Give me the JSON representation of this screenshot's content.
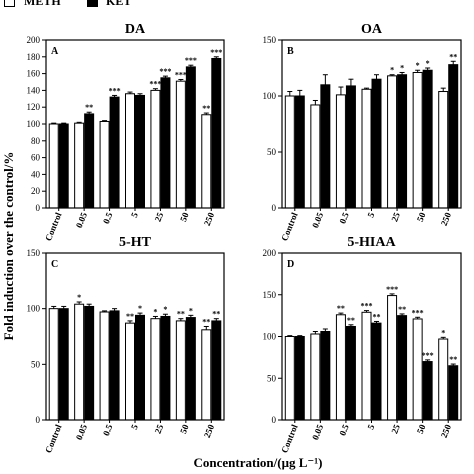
{
  "figure": {
    "ylabel": "Fold induction over the control/%",
    "xlabel": "Concentration/(μg L⁻¹)"
  },
  "legend": [
    {
      "label": "METH",
      "color": "#ffffff"
    },
    {
      "label": "KET",
      "color": "#000000"
    }
  ],
  "chart_data": [
    {
      "type": "bar",
      "letter": "A",
      "title": "DA",
      "categories": [
        "Control",
        "0.05",
        "0.5",
        "5",
        "25",
        "50",
        "250"
      ],
      "ylim": [
        0,
        200
      ],
      "yticks": [
        0,
        20,
        40,
        60,
        80,
        100,
        120,
        140,
        160,
        180,
        200
      ],
      "series": [
        {
          "name": "METH",
          "values": [
            100,
            101,
            103,
            136,
            140,
            151,
            111
          ],
          "errors": [
            1,
            1,
            1,
            2,
            2,
            2,
            2
          ],
          "stars": [
            "",
            "",
            "",
            "",
            "***",
            "***",
            "**"
          ]
        },
        {
          "name": "KET",
          "values": [
            100,
            112,
            132,
            134,
            155,
            168,
            178
          ],
          "errors": [
            1,
            2,
            2,
            2,
            2,
            2,
            2
          ],
          "stars": [
            "",
            "**",
            "***",
            "",
            "***",
            "***",
            "***"
          ]
        }
      ]
    },
    {
      "type": "bar",
      "letter": "B",
      "title": "OA",
      "categories": [
        "Control",
        "0.05",
        "0.5",
        "5",
        "25",
        "50",
        "250"
      ],
      "ylim": [
        0,
        150
      ],
      "yticks": [
        0,
        50,
        100,
        150
      ],
      "series": [
        {
          "name": "METH",
          "values": [
            100,
            92,
            101,
            106,
            118,
            121,
            104
          ],
          "errors": [
            4,
            4,
            7,
            1,
            1,
            2,
            3
          ],
          "stars": [
            "",
            "",
            "",
            "",
            "*",
            "*",
            ""
          ]
        },
        {
          "name": "KET",
          "values": [
            100,
            110,
            109,
            115,
            119,
            123,
            128
          ],
          "errors": [
            5,
            9,
            6,
            4,
            2,
            2,
            3
          ],
          "stars": [
            "",
            "",
            "",
            "",
            "*",
            "*",
            "**"
          ]
        }
      ]
    },
    {
      "type": "bar",
      "letter": "C",
      "title": "5-HT",
      "categories": [
        "Control",
        "0.05",
        "0.5",
        "5",
        "25",
        "50",
        "250"
      ],
      "ylim": [
        0,
        150
      ],
      "yticks": [
        0,
        50,
        100,
        150
      ],
      "series": [
        {
          "name": "METH",
          "values": [
            100,
            104,
            97,
            87,
            91,
            89,
            81
          ],
          "errors": [
            2,
            2,
            1,
            2,
            2,
            2,
            3
          ],
          "stars": [
            "",
            "*",
            "",
            "**",
            "*",
            "**",
            "**"
          ]
        },
        {
          "name": "KET",
          "values": [
            100,
            102,
            98,
            94,
            93,
            92,
            89
          ],
          "errors": [
            2,
            2,
            2,
            2,
            2,
            2,
            2
          ],
          "stars": [
            "",
            "",
            "",
            "*",
            "*",
            "*",
            "**"
          ]
        }
      ]
    },
    {
      "type": "bar",
      "letter": "D",
      "title": "5-HIAA",
      "categories": [
        "Control",
        "0.05",
        "0.5",
        "5",
        "25",
        "50",
        "250"
      ],
      "ylim": [
        0,
        200
      ],
      "yticks": [
        0,
        50,
        100,
        150,
        200
      ],
      "series": [
        {
          "name": "METH",
          "values": [
            100,
            103,
            126,
            129,
            149,
            121,
            97
          ],
          "errors": [
            1,
            3,
            2,
            2,
            2,
            2,
            2
          ],
          "stars": [
            "",
            "",
            "**",
            "***",
            "***",
            "***",
            "*"
          ]
        },
        {
          "name": "KET",
          "values": [
            100,
            106,
            112,
            116,
            125,
            70,
            65
          ],
          "errors": [
            1,
            3,
            2,
            2,
            2,
            2,
            2
          ],
          "stars": [
            "",
            "",
            "**",
            "**",
            "**",
            "***",
            "**"
          ]
        }
      ]
    }
  ]
}
